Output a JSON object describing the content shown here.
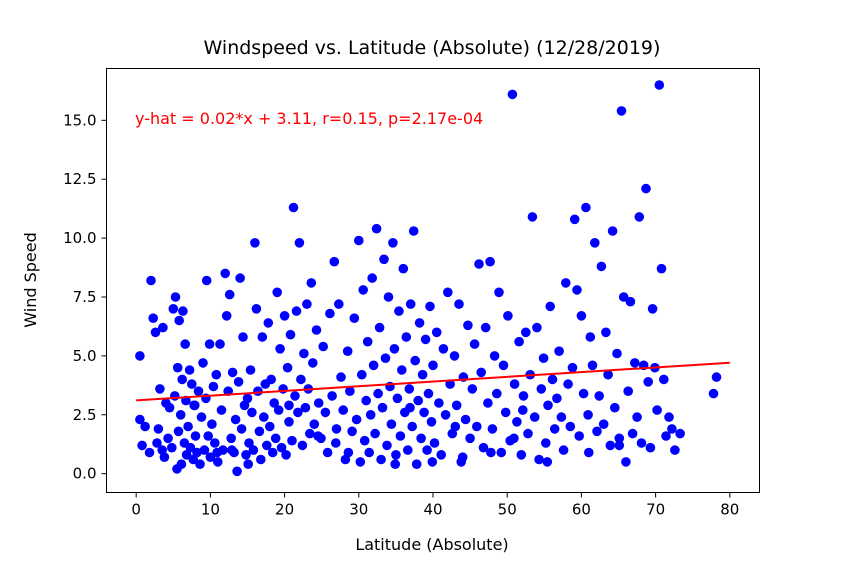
{
  "chart_data": {
    "type": "scatter",
    "title": "Windspeed vs. Latitude (Absolute) (12/28/2019)",
    "xlabel": "Latitude (Absolute)",
    "ylabel": "Wind Speed",
    "xlim": [
      -4,
      84
    ],
    "ylim": [
      -0.8,
      17.2
    ],
    "xticks": [
      0,
      10,
      20,
      30,
      40,
      50,
      60,
      70,
      80
    ],
    "yticks": [
      0.0,
      2.5,
      5.0,
      7.5,
      10.0,
      12.5,
      15.0
    ],
    "xtick_labels": [
      "0",
      "10",
      "20",
      "30",
      "40",
      "50",
      "60",
      "70",
      "80"
    ],
    "ytick_labels": [
      "0.0",
      "2.5",
      "5.0",
      "7.5",
      "10.0",
      "12.5",
      "15.0"
    ],
    "grid": false,
    "marker_color": "#0000ff",
    "line_color": "#ff0000",
    "regression": {
      "slope": 0.02,
      "intercept": 3.11,
      "x_range": [
        0,
        80
      ]
    },
    "annotation": "y-hat = 0.02*x + 3.11, r=0.15, p=2.17e-04",
    "points": [
      [
        0.5,
        5.0
      ],
      [
        0.5,
        2.3
      ],
      [
        0.8,
        1.2
      ],
      [
        1.2,
        2.0
      ],
      [
        1.8,
        0.9
      ],
      [
        2.0,
        8.2
      ],
      [
        2.3,
        6.6
      ],
      [
        2.6,
        6.0
      ],
      [
        2.8,
        1.3
      ],
      [
        3.0,
        1.9
      ],
      [
        3.2,
        3.6
      ],
      [
        3.5,
        1.0
      ],
      [
        3.6,
        6.2
      ],
      [
        3.8,
        0.7
      ],
      [
        4.0,
        3.0
      ],
      [
        4.3,
        1.5
      ],
      [
        4.5,
        2.8
      ],
      [
        4.8,
        1.1
      ],
      [
        5.0,
        7.0
      ],
      [
        5.2,
        3.3
      ],
      [
        5.3,
        7.5
      ],
      [
        5.5,
        0.2
      ],
      [
        5.6,
        4.5
      ],
      [
        5.7,
        1.8
      ],
      [
        5.8,
        6.5
      ],
      [
        6.0,
        2.5
      ],
      [
        6.1,
        0.4
      ],
      [
        6.2,
        4.0
      ],
      [
        6.3,
        6.9
      ],
      [
        6.5,
        1.3
      ],
      [
        6.6,
        5.5
      ],
      [
        6.7,
        3.1
      ],
      [
        6.8,
        0.8
      ],
      [
        7.0,
        2.0
      ],
      [
        7.2,
        4.4
      ],
      [
        7.3,
        1.1
      ],
      [
        7.5,
        3.8
      ],
      [
        7.7,
        0.6
      ],
      [
        7.8,
        2.9
      ],
      [
        8.0,
        1.6
      ],
      [
        8.2,
        0.9
      ],
      [
        8.4,
        3.5
      ],
      [
        8.6,
        0.4
      ],
      [
        8.8,
        2.4
      ],
      [
        9.0,
        4.7
      ],
      [
        9.2,
        1.0
      ],
      [
        9.4,
        3.2
      ],
      [
        9.5,
        8.2
      ],
      [
        9.7,
        1.6
      ],
      [
        9.9,
        5.5
      ],
      [
        10.0,
        0.7
      ],
      [
        10.2,
        2.1
      ],
      [
        10.4,
        3.7
      ],
      [
        10.6,
        1.3
      ],
      [
        10.8,
        4.2
      ],
      [
        11.0,
        0.5
      ],
      [
        11.3,
        5.5
      ],
      [
        11.5,
        2.7
      ],
      [
        11.7,
        1.0
      ],
      [
        12.0,
        8.5
      ],
      [
        12.2,
        6.7
      ],
      [
        12.4,
        3.5
      ],
      [
        12.6,
        7.6
      ],
      [
        12.8,
        1.5
      ],
      [
        13.0,
        4.3
      ],
      [
        13.2,
        0.9
      ],
      [
        13.4,
        2.3
      ],
      [
        13.6,
        0.1
      ],
      [
        13.8,
        3.9
      ],
      [
        14.0,
        8.3
      ],
      [
        14.2,
        1.9
      ],
      [
        14.4,
        5.8
      ],
      [
        14.6,
        2.9
      ],
      [
        14.8,
        0.8
      ],
      [
        15.0,
        3.2
      ],
      [
        15.2,
        1.3
      ],
      [
        15.4,
        4.4
      ],
      [
        15.6,
        2.6
      ],
      [
        15.8,
        1.0
      ],
      [
        16.0,
        9.8
      ],
      [
        16.2,
        7.0
      ],
      [
        16.4,
        3.5
      ],
      [
        16.6,
        1.8
      ],
      [
        16.8,
        0.6
      ],
      [
        17.0,
        5.8
      ],
      [
        17.2,
        2.4
      ],
      [
        17.4,
        3.8
      ],
      [
        17.6,
        1.2
      ],
      [
        17.8,
        6.4
      ],
      [
        18.0,
        2.0
      ],
      [
        18.2,
        4.0
      ],
      [
        18.4,
        0.9
      ],
      [
        18.6,
        3.0
      ],
      [
        18.8,
        1.5
      ],
      [
        19.0,
        7.7
      ],
      [
        19.2,
        2.7
      ],
      [
        19.4,
        5.3
      ],
      [
        19.6,
        1.1
      ],
      [
        19.8,
        3.6
      ],
      [
        20.0,
        6.7
      ],
      [
        20.2,
        0.8
      ],
      [
        20.4,
        4.5
      ],
      [
        20.6,
        2.2
      ],
      [
        20.8,
        5.9
      ],
      [
        21.0,
        1.4
      ],
      [
        21.2,
        11.3
      ],
      [
        21.4,
        3.3
      ],
      [
        21.6,
        6.9
      ],
      [
        21.8,
        2.6
      ],
      [
        22.0,
        9.8
      ],
      [
        22.2,
        4.0
      ],
      [
        22.4,
        1.2
      ],
      [
        22.6,
        5.1
      ],
      [
        22.8,
        2.8
      ],
      [
        23.0,
        7.2
      ],
      [
        23.2,
        3.6
      ],
      [
        23.4,
        1.7
      ],
      [
        23.6,
        8.1
      ],
      [
        23.8,
        4.7
      ],
      [
        24.0,
        2.1
      ],
      [
        24.3,
        6.1
      ],
      [
        24.6,
        3.0
      ],
      [
        24.9,
        1.5
      ],
      [
        25.2,
        5.4
      ],
      [
        25.5,
        2.6
      ],
      [
        25.8,
        0.9
      ],
      [
        26.1,
        6.8
      ],
      [
        26.4,
        3.3
      ],
      [
        26.7,
        9.0
      ],
      [
        27.0,
        1.9
      ],
      [
        27.3,
        7.2
      ],
      [
        27.6,
        4.1
      ],
      [
        27.9,
        2.7
      ],
      [
        28.2,
        0.6
      ],
      [
        28.5,
        5.2
      ],
      [
        28.8,
        3.5
      ],
      [
        29.1,
        1.8
      ],
      [
        29.4,
        6.6
      ],
      [
        29.7,
        2.3
      ],
      [
        30.0,
        9.9
      ],
      [
        30.2,
        0.5
      ],
      [
        30.4,
        4.2
      ],
      [
        30.6,
        7.8
      ],
      [
        30.8,
        1.4
      ],
      [
        31.0,
        3.1
      ],
      [
        31.2,
        5.6
      ],
      [
        31.4,
        0.9
      ],
      [
        31.6,
        2.5
      ],
      [
        31.8,
        8.3
      ],
      [
        32.0,
        4.6
      ],
      [
        32.2,
        1.7
      ],
      [
        32.4,
        10.4
      ],
      [
        32.6,
        3.4
      ],
      [
        32.8,
        6.2
      ],
      [
        33.0,
        0.6
      ],
      [
        33.2,
        2.8
      ],
      [
        33.4,
        9.1
      ],
      [
        33.6,
        4.9
      ],
      [
        33.8,
        1.2
      ],
      [
        34.0,
        7.5
      ],
      [
        34.2,
        3.7
      ],
      [
        34.4,
        2.1
      ],
      [
        34.6,
        9.8
      ],
      [
        34.8,
        5.3
      ],
      [
        35.0,
        0.8
      ],
      [
        35.2,
        3.2
      ],
      [
        35.4,
        6.9
      ],
      [
        35.6,
        1.6
      ],
      [
        35.8,
        4.4
      ],
      [
        36.0,
        8.7
      ],
      [
        36.2,
        2.6
      ],
      [
        36.4,
        5.8
      ],
      [
        36.6,
        1.0
      ],
      [
        36.8,
        3.6
      ],
      [
        37.0,
        7.2
      ],
      [
        37.2,
        2.0
      ],
      [
        37.4,
        10.3
      ],
      [
        37.6,
        4.8
      ],
      [
        37.8,
        0.4
      ],
      [
        38.0,
        3.1
      ],
      [
        38.2,
        6.4
      ],
      [
        38.4,
        1.5
      ],
      [
        38.6,
        4.2
      ],
      [
        38.8,
        2.6
      ],
      [
        39.0,
        5.7
      ],
      [
        39.2,
        1.0
      ],
      [
        39.4,
        3.4
      ],
      [
        39.6,
        7.1
      ],
      [
        39.8,
        2.2
      ],
      [
        40.0,
        4.6
      ],
      [
        40.2,
        1.3
      ],
      [
        40.5,
        6.0
      ],
      [
        40.8,
        3.0
      ],
      [
        41.1,
        0.8
      ],
      [
        41.4,
        5.3
      ],
      [
        41.7,
        2.5
      ],
      [
        42.0,
        7.7
      ],
      [
        42.3,
        3.8
      ],
      [
        42.6,
        1.7
      ],
      [
        42.9,
        5.0
      ],
      [
        43.2,
        2.9
      ],
      [
        43.5,
        7.2
      ],
      [
        43.8,
        0.5
      ],
      [
        44.1,
        4.1
      ],
      [
        44.4,
        2.3
      ],
      [
        44.7,
        6.3
      ],
      [
        45.0,
        1.5
      ],
      [
        45.3,
        3.6
      ],
      [
        45.6,
        5.5
      ],
      [
        45.9,
        2.0
      ],
      [
        46.2,
        8.9
      ],
      [
        46.5,
        4.3
      ],
      [
        46.8,
        1.1
      ],
      [
        47.1,
        6.2
      ],
      [
        47.4,
        3.0
      ],
      [
        47.7,
        9.0
      ],
      [
        48.0,
        1.9
      ],
      [
        48.3,
        5.0
      ],
      [
        48.6,
        3.4
      ],
      [
        48.9,
        7.7
      ],
      [
        49.2,
        0.9
      ],
      [
        49.5,
        4.6
      ],
      [
        49.8,
        2.6
      ],
      [
        50.1,
        6.7
      ],
      [
        50.4,
        1.4
      ],
      [
        50.7,
        16.1
      ],
      [
        51.0,
        3.8
      ],
      [
        51.3,
        2.2
      ],
      [
        51.6,
        5.6
      ],
      [
        51.9,
        0.8
      ],
      [
        52.2,
        3.3
      ],
      [
        52.5,
        6.0
      ],
      [
        52.8,
        1.7
      ],
      [
        53.1,
        4.2
      ],
      [
        53.4,
        10.9
      ],
      [
        53.7,
        2.4
      ],
      [
        54.0,
        6.2
      ],
      [
        54.3,
        0.6
      ],
      [
        54.6,
        3.6
      ],
      [
        54.9,
        4.9
      ],
      [
        55.2,
        1.3
      ],
      [
        55.5,
        2.9
      ],
      [
        55.8,
        7.1
      ],
      [
        56.1,
        4.0
      ],
      [
        56.4,
        1.9
      ],
      [
        56.7,
        3.2
      ],
      [
        57.0,
        5.2
      ],
      [
        57.3,
        2.4
      ],
      [
        57.6,
        1.0
      ],
      [
        57.9,
        8.1
      ],
      [
        58.2,
        3.8
      ],
      [
        58.5,
        2.0
      ],
      [
        58.8,
        4.5
      ],
      [
        59.1,
        10.8
      ],
      [
        59.4,
        7.8
      ],
      [
        59.7,
        1.6
      ],
      [
        60.0,
        6.7
      ],
      [
        60.3,
        3.4
      ],
      [
        60.6,
        11.3
      ],
      [
        60.9,
        2.5
      ],
      [
        61.2,
        5.8
      ],
      [
        61.5,
        4.6
      ],
      [
        61.8,
        9.8
      ],
      [
        62.1,
        1.8
      ],
      [
        62.4,
        3.3
      ],
      [
        62.7,
        8.8
      ],
      [
        63.0,
        2.1
      ],
      [
        63.3,
        6.0
      ],
      [
        63.6,
        4.2
      ],
      [
        63.9,
        1.2
      ],
      [
        64.2,
        10.3
      ],
      [
        64.5,
        2.8
      ],
      [
        64.8,
        5.1
      ],
      [
        65.1,
        1.5
      ],
      [
        65.4,
        15.4
      ],
      [
        65.7,
        7.5
      ],
      [
        66.0,
        0.5
      ],
      [
        66.3,
        3.5
      ],
      [
        66.6,
        7.3
      ],
      [
        66.9,
        1.7
      ],
      [
        67.2,
        4.7
      ],
      [
        67.5,
        2.4
      ],
      [
        67.8,
        10.9
      ],
      [
        68.1,
        1.3
      ],
      [
        68.4,
        4.6
      ],
      [
        68.7,
        12.1
      ],
      [
        69.0,
        3.9
      ],
      [
        69.3,
        1.1
      ],
      [
        69.6,
        7.0
      ],
      [
        69.9,
        4.5
      ],
      [
        70.2,
        2.7
      ],
      [
        70.5,
        16.5
      ],
      [
        70.8,
        8.7
      ],
      [
        71.1,
        4.0
      ],
      [
        71.4,
        1.6
      ],
      [
        71.8,
        2.4
      ],
      [
        72.2,
        1.9
      ],
      [
        72.6,
        1.0
      ],
      [
        73.3,
        1.7
      ],
      [
        77.8,
        3.4
      ],
      [
        78.2,
        4.1
      ],
      [
        50.9,
        1.5
      ],
      [
        34.9,
        0.4
      ],
      [
        28.6,
        0.9
      ],
      [
        24.5,
        1.6
      ],
      [
        44.0,
        0.7
      ],
      [
        47.8,
        0.9
      ],
      [
        55.4,
        0.5
      ],
      [
        61.0,
        0.9
      ],
      [
        15.1,
        0.4
      ],
      [
        10.9,
        0.9
      ],
      [
        7.9,
        2.9
      ],
      [
        39.9,
        0.5
      ],
      [
        43.0,
        2.0
      ],
      [
        36.9,
        2.8
      ],
      [
        26.9,
        1.3
      ],
      [
        20.6,
        2.9
      ],
      [
        52.1,
        2.7
      ],
      [
        65.1,
        1.2
      ],
      [
        12.9,
        1.0
      ]
    ]
  }
}
